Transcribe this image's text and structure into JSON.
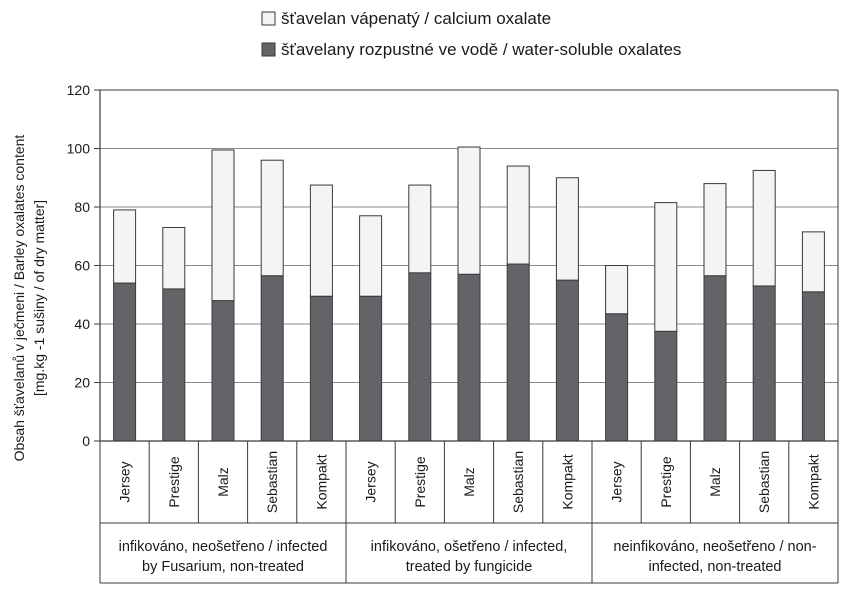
{
  "chart_data": {
    "type": "bar",
    "stacked": true,
    "categories": [
      "Jersey",
      "Prestige",
      "Malz",
      "Sebastian",
      "Kompakt",
      "Jersey",
      "Prestige",
      "Malz",
      "Sebastian",
      "Kompakt",
      "Jersey",
      "Prestige",
      "Malz",
      "Sebastian",
      "Kompakt"
    ],
    "groups": [
      {
        "label_lines": [
          "infikováno, neošetřeno / infected",
          "by Fusarium, non-treated"
        ],
        "count": 5
      },
      {
        "label_lines": [
          "infikováno, ošetřeno / infected,",
          "treated by fungicide"
        ],
        "count": 5
      },
      {
        "label_lines": [
          "neinfikováno, neošetřeno / non-",
          "infected, non-treated"
        ],
        "count": 5
      }
    ],
    "series": [
      {
        "name": "šťavelany rozpustné ve vodě / water-soluble oxalates",
        "color": "#646468",
        "values": [
          54,
          52,
          48,
          56.5,
          49.5,
          49.5,
          57.5,
          57,
          60.5,
          55,
          43.5,
          37.5,
          56.5,
          53,
          51
        ]
      },
      {
        "name": "šťavelan vápenatý / calcium oxalate",
        "color": "#f4f4f4",
        "values": [
          25,
          21,
          51.5,
          39.5,
          38,
          27.5,
          30,
          43.5,
          33.5,
          35,
          16.5,
          44,
          31.5,
          39.5,
          20.5
        ]
      }
    ],
    "legend_order": [
      1,
      0
    ],
    "legend_position": "top",
    "ylabel_lines": [
      "Obsah šťavelanů v ječmeni / Barley oxalates content",
      "[mg.kg -1 sušiny / of dry matter]"
    ],
    "xlabel": "",
    "title": "",
    "ylim": [
      0,
      120
    ],
    "yticks": [
      0,
      20,
      40,
      60,
      80,
      100,
      120
    ],
    "grid": true
  }
}
